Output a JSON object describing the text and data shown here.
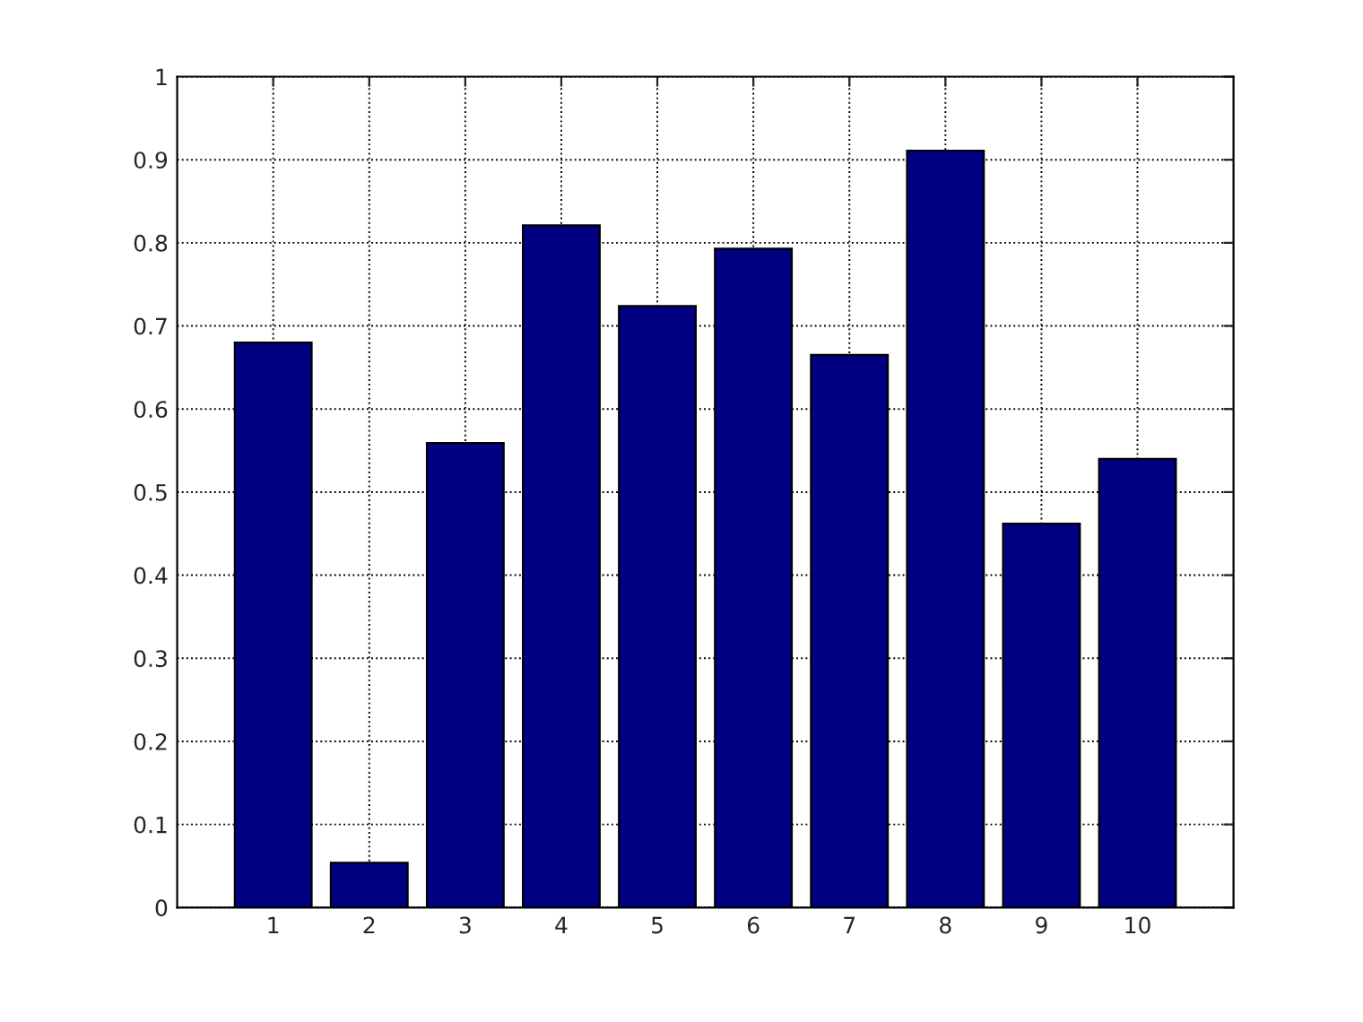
{
  "chart_data": {
    "type": "bar",
    "x": [
      1,
      2,
      3,
      4,
      5,
      6,
      7,
      8,
      9,
      10
    ],
    "values": [
      0.68,
      0.054,
      0.559,
      0.821,
      0.724,
      0.793,
      0.665,
      0.911,
      0.462,
      0.54
    ],
    "color": "#000080",
    "xlim": [
      0,
      11
    ],
    "xticks": [
      1,
      2,
      3,
      4,
      5,
      6,
      7,
      8,
      9,
      10
    ],
    "ylim": [
      0,
      1
    ],
    "yticks": [
      0,
      0.1,
      0.2,
      0.3,
      0.4,
      0.5,
      0.6,
      0.7,
      0.8,
      0.9,
      1
    ],
    "grid": true,
    "line_style": "dotted"
  }
}
